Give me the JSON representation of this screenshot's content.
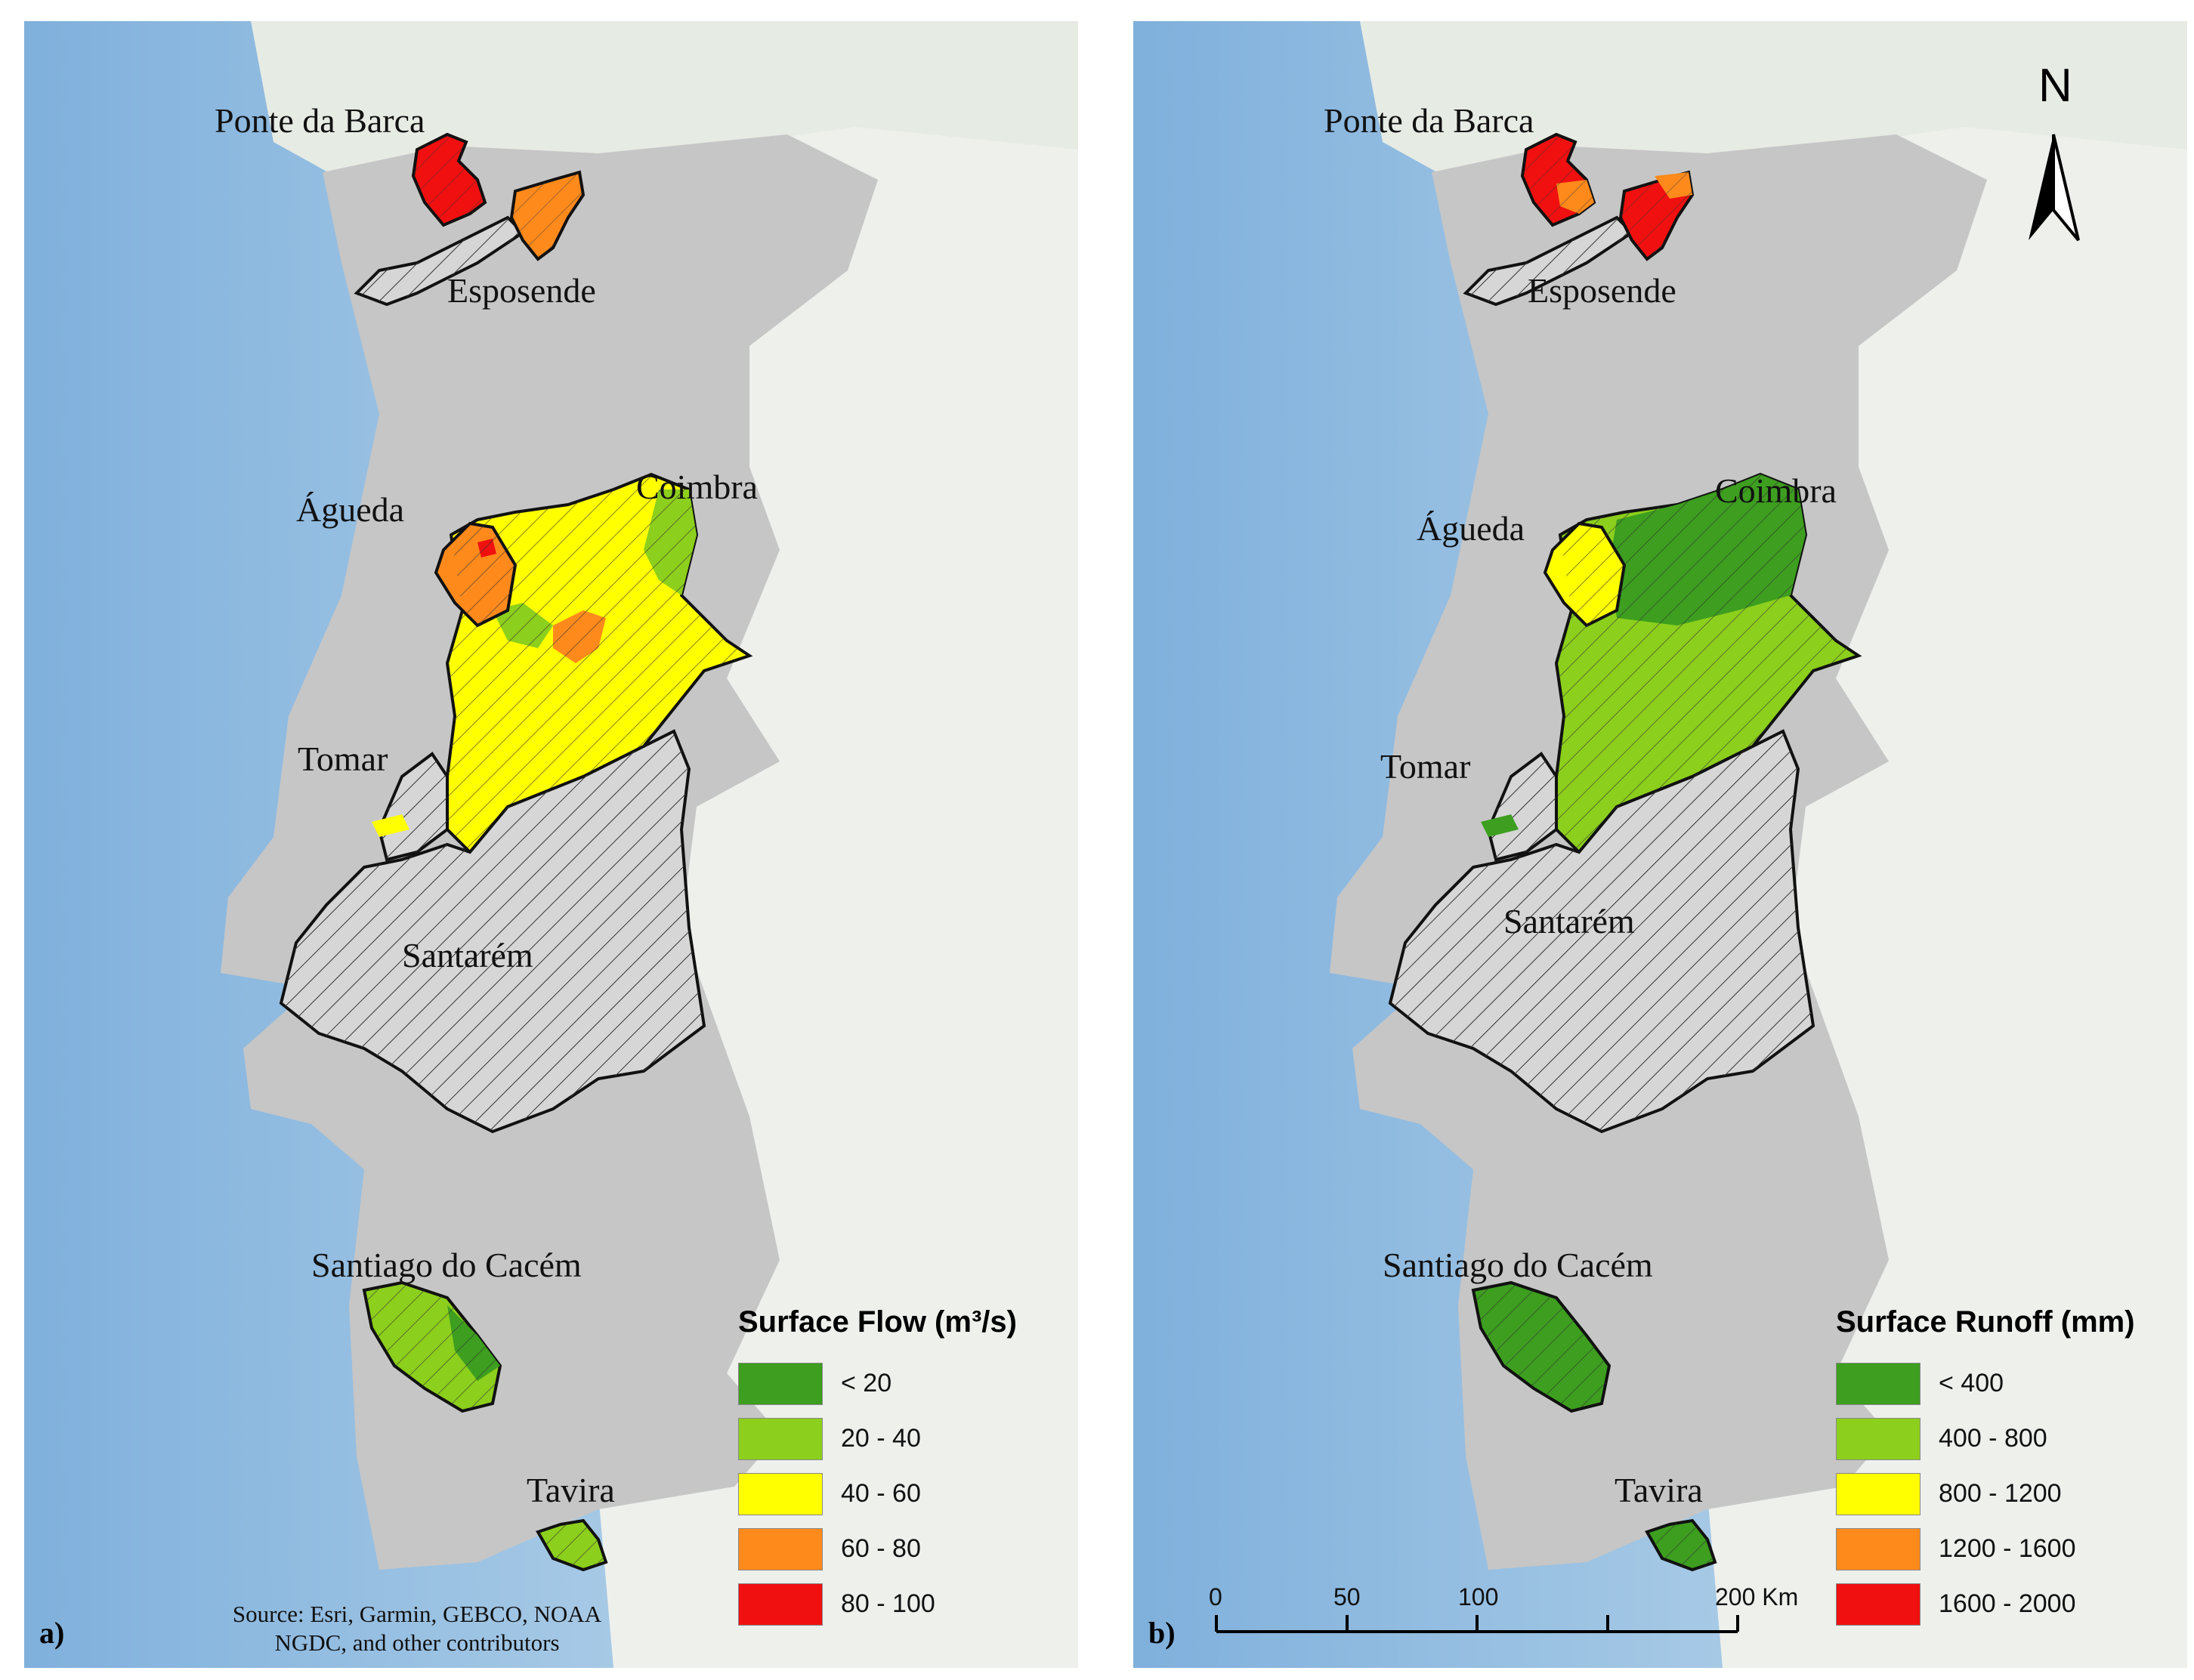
{
  "panels": [
    {
      "letter": "a)",
      "legend_title": "Surface Flow (m³/s)",
      "legend": [
        {
          "label": "< 20",
          "color": "#3d9e1f"
        },
        {
          "label": "20 - 40",
          "color": "#8ccf1c"
        },
        {
          "label": "40 - 60",
          "color": "#ffff00"
        },
        {
          "label": "60 - 80",
          "color": "#ff8a1c"
        },
        {
          "label": "80 - 100",
          "color": "#f01010"
        }
      ],
      "source_line1": "Source: Esri, Garmin, GEBCO, NOAA",
      "source_line2": "NGDC, and other contributors"
    },
    {
      "letter": "b)",
      "legend_title": "Surface Runoff (mm)",
      "legend": [
        {
          "label": "< 400",
          "color": "#3d9e1f"
        },
        {
          "label": "400 - 800",
          "color": "#8ccf1c"
        },
        {
          "label": "800 - 1200",
          "color": "#ffff00"
        },
        {
          "label": "1200 - 1600",
          "color": "#ff8a1c"
        },
        {
          "label": "1600 - 2000",
          "color": "#f01010"
        }
      ],
      "north": "N",
      "scale_labels": [
        "0",
        "50",
        "100",
        "200 Km"
      ]
    }
  ],
  "places": {
    "ponte_da_barca": "Ponte da Barca",
    "esposende": "Esposende",
    "agueda": "Águeda",
    "coimbra": "Coimbra",
    "tomar": "Tomar",
    "santarem": "Santarém",
    "santiago": "Santiago do Cacém",
    "tavira": "Tavira"
  },
  "colors": {
    "ocean": "#a9cbe6",
    "ocean_deep": "#8fb9df",
    "land_spain": "#eef0ec",
    "portugal": "#c8c8c8",
    "unmodeled_basin": "#d6d6d6"
  }
}
